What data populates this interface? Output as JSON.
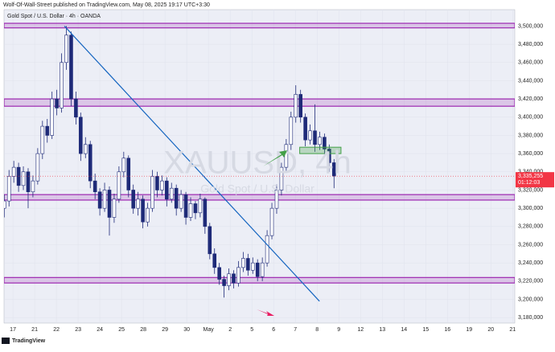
{
  "header": "Wolf-Of-Wall-Street published on TradingView.com, May 08, 2025 19:17 UTC+3:30",
  "footer": "TradingView",
  "chart_data": {
    "type": "candlestick",
    "title": "Gold Spot / U.S. Dollar · 4h · OANDA",
    "watermark": [
      "XAUUSD, 4h",
      "Gold Spot / U.S. Dollar"
    ],
    "up_color": "#ffffff",
    "down_color": "#1e2a78",
    "grid": true,
    "x": [
      -0.4,
      -0.18,
      0.04,
      0.26,
      0.48,
      0.7,
      0.92,
      1.14,
      1.36,
      1.58,
      1.8,
      2.02,
      2.24,
      2.46,
      2.68,
      2.9,
      3.12,
      3.34,
      3.56,
      3.78,
      4,
      4.22,
      4.44,
      4.66,
      4.88,
      5.1,
      5.32,
      5.54,
      5.76,
      5.98,
      6.2,
      6.42,
      6.64,
      6.86,
      7.08,
      7.3,
      7.52,
      7.74,
      7.96,
      8.18,
      8.4,
      8.62,
      8.84,
      9.06,
      9.28,
      9.5,
      9.72,
      9.94,
      10.16,
      10.38,
      10.6,
      10.82,
      11.04,
      11.26,
      11.48,
      11.7,
      11.92,
      12.14,
      12.36,
      12.58,
      12.8,
      13.02,
      13.24,
      13.46,
      13.68,
      13.9,
      14.12,
      14.34,
      14.56,
      14.78
    ],
    "open": [
      3300000,
      3308000,
      3335000,
      3345000,
      3325000,
      3340000,
      3318000,
      3330000,
      3360000,
      3390000,
      3380000,
      3420000,
      3410000,
      3460000,
      3490000,
      3420000,
      3400000,
      3360000,
      3370000,
      3330000,
      3318000,
      3300000,
      3320000,
      3290000,
      3310000,
      3340000,
      3355000,
      3320000,
      3300000,
      3310000,
      3285000,
      3300000,
      3335000,
      3320000,
      3330000,
      3310000,
      3322000,
      3300000,
      3315000,
      3290000,
      3305000,
      3295000,
      3310000,
      3280000,
      3250000,
      3235000,
      3222000,
      3215000,
      3228000,
      3218000,
      3235000,
      3245000,
      3232000,
      3240000,
      3225000,
      3240000,
      3270000,
      3300000,
      3320000,
      3345000,
      3370000,
      3400000,
      3425000,
      3400000,
      3375000,
      3385000,
      3370000,
      3378000,
      3365000,
      3350000
    ],
    "high": [
      3315000,
      3342000,
      3352000,
      3350000,
      3346000,
      3344000,
      3336000,
      3366000,
      3396000,
      3398000,
      3428000,
      3430000,
      3470000,
      3500000,
      3494000,
      3428000,
      3405000,
      3378000,
      3374000,
      3338000,
      3322000,
      3328000,
      3324000,
      3316000,
      3346000,
      3362000,
      3358000,
      3326000,
      3318000,
      3314000,
      3306000,
      3342000,
      3340000,
      3336000,
      3334000,
      3328000,
      3326000,
      3320000,
      3318000,
      3312000,
      3308000,
      3316000,
      3312000,
      3284000,
      3256000,
      3240000,
      3226000,
      3234000,
      3232000,
      3242000,
      3252000,
      3250000,
      3246000,
      3244000,
      3246000,
      3276000,
      3306000,
      3326000,
      3350000,
      3376000,
      3406000,
      3435000,
      3430000,
      3404000,
      3392000,
      3414000,
      3384000,
      3382000,
      3370000,
      3354000
    ],
    "low": [
      3290000,
      3302000,
      3328000,
      3318000,
      3320000,
      3300000,
      3312000,
      3326000,
      3354000,
      3372000,
      3376000,
      3402000,
      3405000,
      3452000,
      3412000,
      3392000,
      3352000,
      3355000,
      3322000,
      3310000,
      3292000,
      3296000,
      3270000,
      3284000,
      3306000,
      3334000,
      3312000,
      3294000,
      3292000,
      3278000,
      3280000,
      3296000,
      3312000,
      3314000,
      3302000,
      3306000,
      3292000,
      3296000,
      3282000,
      3286000,
      3288000,
      3290000,
      3272000,
      3244000,
      3228000,
      3216000,
      3202000,
      3210000,
      3212000,
      3214000,
      3230000,
      3226000,
      3228000,
      3220000,
      3220000,
      3236000,
      3266000,
      3294000,
      3314000,
      3340000,
      3364000,
      3394000,
      3394000,
      3368000,
      3370000,
      3362000,
      3364000,
      3358000,
      3340000,
      3322000
    ],
    "close": [
      3308000,
      3335000,
      3345000,
      3325000,
      3340000,
      3318000,
      3330000,
      3360000,
      3390000,
      3380000,
      3420000,
      3410000,
      3460000,
      3490000,
      3420000,
      3400000,
      3360000,
      3370000,
      3330000,
      3318000,
      3300000,
      3320000,
      3290000,
      3310000,
      3340000,
      3355000,
      3320000,
      3300000,
      3310000,
      3285000,
      3300000,
      3335000,
      3320000,
      3330000,
      3310000,
      3322000,
      3300000,
      3315000,
      3290000,
      3305000,
      3295000,
      3310000,
      3280000,
      3250000,
      3235000,
      3222000,
      3215000,
      3228000,
      3218000,
      3235000,
      3245000,
      3232000,
      3240000,
      3225000,
      3240000,
      3270000,
      3300000,
      3320000,
      3345000,
      3370000,
      3400000,
      3425000,
      3400000,
      3375000,
      3385000,
      3370000,
      3378000,
      3365000,
      3350000,
      3335255
    ],
    "xlim": [
      -0.41,
      23.1
    ],
    "xticks": [
      {
        "value": 0,
        "label": "17"
      },
      {
        "value": 1,
        "label": "21"
      },
      {
        "value": 2,
        "label": "22"
      },
      {
        "value": 3,
        "label": "23"
      },
      {
        "value": 4,
        "label": "24"
      },
      {
        "value": 5,
        "label": "25"
      },
      {
        "value": 6,
        "label": "28"
      },
      {
        "value": 7,
        "label": "29"
      },
      {
        "value": 8,
        "label": "30"
      },
      {
        "value": 9,
        "label": "May"
      },
      {
        "value": 10,
        "label": "2"
      },
      {
        "value": 11,
        "label": "5"
      },
      {
        "value": 12,
        "label": "6"
      },
      {
        "value": 13,
        "label": "7"
      },
      {
        "value": 14,
        "label": "8"
      },
      {
        "value": 15,
        "label": "9"
      },
      {
        "value": 16,
        "label": "12"
      },
      {
        "value": 17,
        "label": "13"
      },
      {
        "value": 18,
        "label": "14"
      },
      {
        "value": 19,
        "label": "15"
      },
      {
        "value": 20,
        "label": "16"
      },
      {
        "value": 21,
        "label": "19"
      },
      {
        "value": 22,
        "label": "20"
      },
      {
        "value": 23,
        "label": "21"
      }
    ],
    "ylim": [
      3174000,
      3518000
    ],
    "yticks": [
      {
        "value": 3500000,
        "label": "3,500,000"
      },
      {
        "value": 3480000,
        "label": "3,480,000"
      },
      {
        "value": 3460000,
        "label": "3,460,000"
      },
      {
        "value": 3440000,
        "label": "3,440,000"
      },
      {
        "value": 3420000,
        "label": "3,420,000"
      },
      {
        "value": 3400000,
        "label": "3,400,000"
      },
      {
        "value": 3380000,
        "label": "3,380,000"
      },
      {
        "value": 3360000,
        "label": "3,360,000"
      },
      {
        "value": 3340000,
        "label": "3,340,000"
      },
      {
        "value": 3320000,
        "label": "3,320,000"
      },
      {
        "value": 3300000,
        "label": "3,300,000"
      },
      {
        "value": 3280000,
        "label": "3,280,000"
      },
      {
        "value": 3260000,
        "label": "3,260,000"
      },
      {
        "value": 3240000,
        "label": "3,240,000"
      },
      {
        "value": 3220000,
        "label": "3,220,000"
      },
      {
        "value": 3200000,
        "label": "3,200,000"
      },
      {
        "value": 3180000,
        "label": "3,180,000"
      }
    ],
    "zones": [
      [
        3498000,
        3503000
      ],
      [
        3412000,
        3420000
      ],
      [
        3309000,
        3315000
      ],
      [
        3218000,
        3224000
      ]
    ],
    "zone_color": "#9c27b0",
    "trendline": {
      "x": [
        2.37,
        14.11
      ],
      "y": [
        3500000,
        3198000
      ],
      "color": "#1565c0"
    },
    "box": {
      "x": [
        13.2,
        15.1
      ],
      "y": [
        3360000,
        3367000
      ],
      "color": "#43a047"
    },
    "last_price": {
      "value": 3335255,
      "label": "3,335,255"
    },
    "countdown": "01:12:03"
  }
}
